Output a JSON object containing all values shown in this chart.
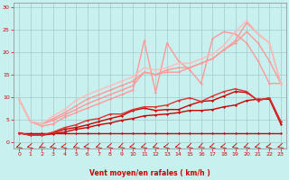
{
  "xlabel": "Vent moyen/en rafales ( km/h )",
  "xlim": [
    -0.5,
    23.5
  ],
  "ylim": [
    -1.5,
    31
  ],
  "yticks": [
    0,
    5,
    10,
    15,
    20,
    25,
    30
  ],
  "xticks": [
    0,
    1,
    2,
    3,
    4,
    5,
    6,
    7,
    8,
    9,
    10,
    11,
    12,
    13,
    14,
    15,
    16,
    17,
    18,
    19,
    20,
    21,
    22,
    23
  ],
  "bg_color": "#c8f0ee",
  "grid_color": "#a0cccc",
  "lines": [
    {
      "x": [
        0,
        1,
        2,
        3,
        4,
        5,
        6,
        7,
        8,
        9,
        10,
        11,
        12,
        13,
        14,
        15,
        16,
        17,
        18,
        19,
        20,
        21,
        22,
        23
      ],
      "y": [
        2,
        2,
        2,
        2,
        2,
        2,
        2,
        2,
        2,
        2,
        2,
        2,
        2,
        2,
        2,
        2,
        2,
        2,
        2,
        2,
        2,
        2,
        2,
        2
      ],
      "color": "#cc0000",
      "lw": 1.0,
      "marker": "D",
      "ms": 1.5
    },
    {
      "x": [
        0,
        1,
        2,
        3,
        4,
        5,
        6,
        7,
        8,
        9,
        10,
        11,
        12,
        13,
        14,
        15,
        16,
        17,
        18,
        19,
        20,
        21,
        22,
        23
      ],
      "y": [
        2,
        1.5,
        1.5,
        1.8,
        2.2,
        2.8,
        3.2,
        3.8,
        4.2,
        4.8,
        5.2,
        5.8,
        6.0,
        6.2,
        6.5,
        7.0,
        7.0,
        7.2,
        7.8,
        8.2,
        9.2,
        9.5,
        9.5,
        4.0
      ],
      "color": "#cc0000",
      "lw": 1.0,
      "marker": "D",
      "ms": 1.5
    },
    {
      "x": [
        0,
        1,
        2,
        3,
        4,
        5,
        6,
        7,
        8,
        9,
        10,
        11,
        12,
        13,
        14,
        15,
        16,
        17,
        18,
        19,
        20,
        21,
        22,
        23
      ],
      "y": [
        2,
        1.5,
        1.5,
        2.0,
        2.8,
        3.2,
        3.8,
        4.5,
        5.2,
        5.8,
        7.0,
        7.5,
        7.0,
        7.2,
        7.2,
        8.2,
        9.0,
        9.2,
        10.2,
        11.2,
        11.0,
        9.2,
        9.8,
        4.5
      ],
      "color": "#cc0000",
      "lw": 1.0,
      "marker": "D",
      "ms": 1.5
    },
    {
      "x": [
        0,
        1,
        2,
        3,
        4,
        5,
        6,
        7,
        8,
        9,
        10,
        11,
        12,
        13,
        14,
        15,
        16,
        17,
        18,
        19,
        20,
        21,
        22,
        23
      ],
      "y": [
        2,
        1.5,
        1.5,
        2.2,
        3.2,
        3.8,
        4.8,
        5.2,
        6.2,
        6.2,
        7.2,
        7.8,
        7.8,
        8.2,
        9.2,
        9.8,
        9.0,
        10.2,
        11.2,
        11.8,
        11.2,
        9.2,
        9.8,
        4.5
      ],
      "color": "#dd3333",
      "lw": 1.0,
      "marker": "D",
      "ms": 1.5
    },
    {
      "x": [
        0,
        1,
        2,
        3,
        4,
        5,
        6,
        7,
        8,
        9,
        10,
        11,
        12,
        13,
        14,
        15,
        16,
        17,
        18,
        19,
        20,
        21,
        22,
        23
      ],
      "y": [
        9.5,
        4.5,
        3.5,
        4.0,
        5.5,
        6.5,
        7.5,
        8.5,
        9.5,
        10.5,
        11.5,
        22.5,
        11.0,
        22.0,
        18.0,
        16.0,
        13.0,
        23.0,
        24.5,
        24.0,
        22.0,
        18.0,
        13.0,
        13.0
      ],
      "color": "#ff9999",
      "lw": 1.0,
      "marker": "D",
      "ms": 1.5
    },
    {
      "x": [
        0,
        1,
        2,
        3,
        4,
        5,
        6,
        7,
        8,
        9,
        10,
        11,
        12,
        13,
        14,
        15,
        16,
        17,
        18,
        19,
        20,
        21,
        22,
        23
      ],
      "y": [
        9.5,
        4.5,
        4.0,
        4.8,
        6.0,
        7.2,
        8.5,
        9.5,
        10.5,
        11.5,
        12.5,
        15.5,
        15.0,
        15.5,
        15.5,
        16.5,
        17.5,
        18.5,
        20.5,
        22.0,
        24.5,
        22.0,
        18.0,
        13.0
      ],
      "color": "#ff9999",
      "lw": 1.0,
      "marker": "D",
      "ms": 1.5
    },
    {
      "x": [
        0,
        1,
        2,
        3,
        4,
        5,
        6,
        7,
        8,
        9,
        10,
        11,
        12,
        13,
        14,
        15,
        16,
        17,
        18,
        19,
        20,
        21,
        22,
        23
      ],
      "y": [
        9.5,
        4.5,
        4.0,
        5.2,
        6.5,
        8.0,
        9.5,
        10.5,
        11.5,
        12.5,
        13.5,
        15.5,
        15.0,
        16.0,
        16.5,
        16.5,
        17.5,
        18.5,
        20.5,
        22.5,
        26.5,
        24.0,
        22.0,
        13.0
      ],
      "color": "#ff9999",
      "lw": 1.0,
      "marker": "D",
      "ms": 1.5
    },
    {
      "x": [
        0,
        1,
        2,
        3,
        4,
        5,
        6,
        7,
        8,
        9,
        10,
        11,
        12,
        13,
        14,
        15,
        16,
        17,
        18,
        19,
        20,
        21,
        22,
        23
      ],
      "y": [
        9.5,
        4.5,
        4.0,
        5.8,
        7.2,
        9.2,
        10.5,
        11.5,
        12.5,
        13.5,
        14.5,
        16.5,
        16.0,
        16.5,
        17.5,
        17.5,
        18.5,
        19.5,
        21.5,
        24.5,
        27.0,
        24.0,
        22.0,
        13.0
      ],
      "color": "#ffbbbb",
      "lw": 1.0,
      "marker": "D",
      "ms": 1.5
    }
  ],
  "arrow_angles_deg": [
    220,
    210,
    230,
    215,
    205,
    225,
    200,
    218,
    212,
    222,
    208,
    215,
    220,
    205,
    210,
    218,
    225,
    212,
    207,
    215,
    220,
    210,
    205,
    215
  ]
}
